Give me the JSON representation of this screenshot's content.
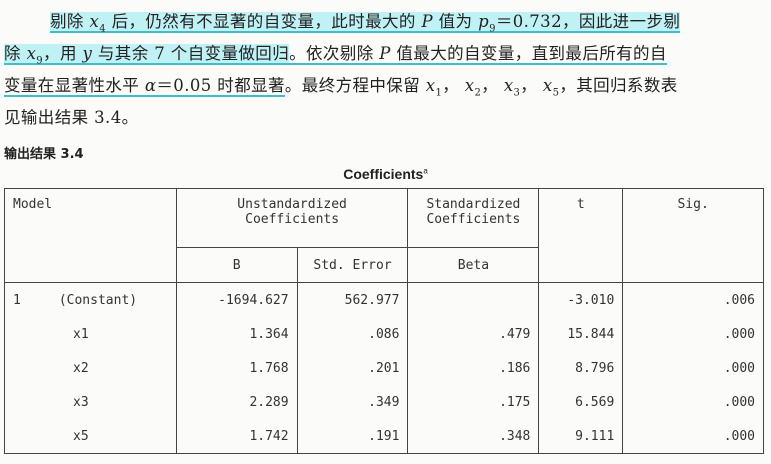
{
  "text": {
    "l1_pre": "剔除",
    "l1_var": "x",
    "l1_sub": "4",
    "l1_a": "后，仍然有不显著的自变量，此时最大的",
    "l1_P": "P",
    "l1_b": "值为",
    "l1_p": "p",
    "l1_psub": "9",
    "l1_val": "＝0.732",
    "l1_c": "，因此进一步剔",
    "l2_a": "除",
    "l2_var": "x",
    "l2_sub": "9",
    "l2_b": "，用",
    "l2_y": "y",
    "l2_c": "与其余 7 个自变量做回归",
    "l2_d": "。依次剔除",
    "l2_P": "P",
    "l2_e": "值最大的自变量，直到最后所有的自",
    "l3_a": "变量在显著性水平",
    "l3_alpha": "α",
    "l3_b": "＝0.05 时都显著",
    "l3_c": "。最终方程中保留",
    "l3_x1": "x",
    "l3_s1": "1",
    "l3_x2": "x",
    "l3_s2": "2",
    "l3_x3": "x",
    "l3_s3": "3",
    "l3_x5": "x",
    "l3_s5": "5",
    "l3_d": "，其回归系数表",
    "l4": "见输出结果 3.4。",
    "output_title": "输出结果 3.4",
    "table_title": "Coefficients",
    "table_sup": "a"
  },
  "headers": {
    "model": "Model",
    "unstd_1": "Unstandardized",
    "unstd_2": "Coefficients",
    "std_1": "Standardized",
    "std_2": "Coefficients",
    "t": "t",
    "sig": "Sig.",
    "b": "B",
    "se": "Std. Error",
    "beta": "Beta"
  },
  "model_number": "1",
  "rows": [
    {
      "name": "(Constant)",
      "b": "-1694.627",
      "se": "562.977",
      "beta": "",
      "t": "-3.010",
      "sig": ".006"
    },
    {
      "name": "x1",
      "b": "1.364",
      "se": ".086",
      "beta": ".479",
      "t": "15.844",
      "sig": ".000"
    },
    {
      "name": "x2",
      "b": "1.768",
      "se": ".201",
      "beta": ".186",
      "t": "8.796",
      "sig": ".000"
    },
    {
      "name": "x3",
      "b": "2.289",
      "se": ".349",
      "beta": ".175",
      "t": "6.569",
      "sig": ".000"
    },
    {
      "name": "x5",
      "b": "1.742",
      "se": ".191",
      "beta": ".348",
      "t": "9.111",
      "sig": ".000"
    }
  ]
}
